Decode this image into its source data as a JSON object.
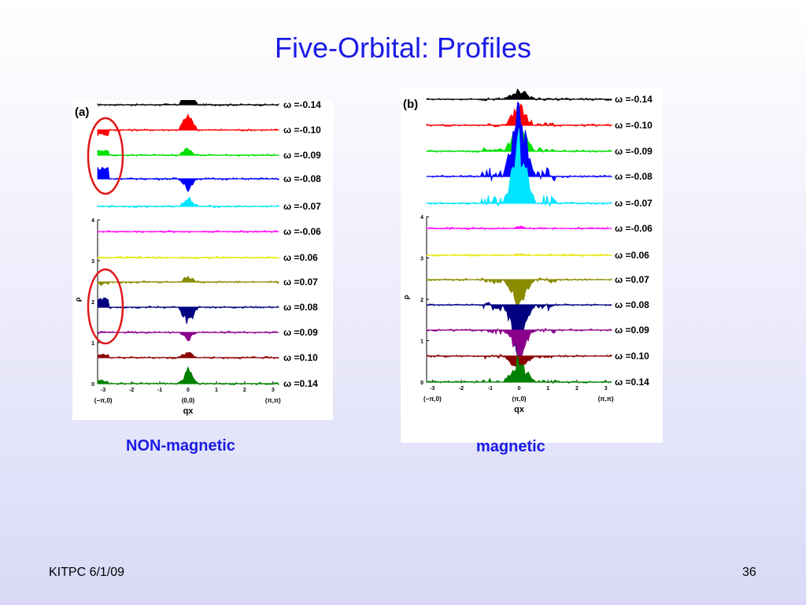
{
  "slide": {
    "title": "Five-Orbital: Profiles",
    "footer_left": "KITPC 6/1/09",
    "page_number": "36"
  },
  "panels": [
    {
      "id": "a",
      "panel_label": "(a)",
      "caption": "NON-magnetic",
      "caption_color": "#1a1ae6",
      "annotation": "red circles around left edge of ω=-0.10…-0.08 and ω=0.07…0.09 traces"
    },
    {
      "id": "b",
      "panel_label": "(b)",
      "caption": "magnetic",
      "caption_color": "#1a1ae6"
    }
  ],
  "chart_data": [
    {
      "type": "area",
      "panel": "(a)",
      "ylabel": "ρ",
      "xlabel": "qx",
      "x_ticks": [
        "-3",
        "-2",
        "-1",
        "0",
        "1",
        "2",
        "3"
      ],
      "y_ticks": [
        "0",
        "1",
        "2",
        "3",
        "4"
      ],
      "x_point_labels": [
        "(−π,0)",
        "(0,0)",
        "(π,π)"
      ],
      "xlim": [
        -3.2,
        3.2
      ],
      "ylim": [
        0,
        4
      ],
      "series": [
        {
          "name": "ω =-0.14",
          "color": "#000000"
        },
        {
          "name": "ω =-0.10",
          "color": "#ff0000"
        },
        {
          "name": "ω =-0.09",
          "color": "#00e000"
        },
        {
          "name": "ω =-0.08",
          "color": "#0000ff"
        },
        {
          "name": "ω =-0.07",
          "color": "#00e5ff"
        },
        {
          "name": "ω =-0.06",
          "color": "#ff00ff"
        },
        {
          "name": "ω =0.06",
          "color": "#e6e600"
        },
        {
          "name": "ω =0.07",
          "color": "#8b8b00"
        },
        {
          "name": "ω =0.08",
          "color": "#000080"
        },
        {
          "name": "ω =0.09",
          "color": "#8b008b"
        },
        {
          "name": "ω =0.10",
          "color": "#8b0000"
        },
        {
          "name": "ω =0.14",
          "color": "#008000"
        }
      ]
    },
    {
      "type": "area",
      "panel": "(b)",
      "ylabel": "ρ",
      "xlabel": "qx",
      "x_ticks": [
        "-3",
        "-2",
        "-1",
        "0",
        "1",
        "2",
        "3"
      ],
      "y_ticks": [
        "0",
        "1",
        "2",
        "3",
        "4"
      ],
      "x_point_labels": [
        "(−π,0)",
        "(π,0)",
        "(π,π)"
      ],
      "xlim": [
        -3.2,
        3.2
      ],
      "ylim": [
        0,
        4
      ],
      "series": [
        {
          "name": "ω =-0.14",
          "color": "#000000"
        },
        {
          "name": "ω =-0.10",
          "color": "#ff0000"
        },
        {
          "name": "ω =-0.09",
          "color": "#00e000"
        },
        {
          "name": "ω =-0.08",
          "color": "#0000ff"
        },
        {
          "name": "ω =-0.07",
          "color": "#00e5ff"
        },
        {
          "name": "ω =-0.06",
          "color": "#ff00ff"
        },
        {
          "name": "ω =0.06",
          "color": "#e6e600"
        },
        {
          "name": "ω =0.07",
          "color": "#8b8b00"
        },
        {
          "name": "ω =0.08",
          "color": "#000080"
        },
        {
          "name": "ω =0.09",
          "color": "#8b008b"
        },
        {
          "name": "ω =0.10",
          "color": "#8b0000"
        },
        {
          "name": "ω =0.14",
          "color": "#008000"
        }
      ]
    }
  ]
}
